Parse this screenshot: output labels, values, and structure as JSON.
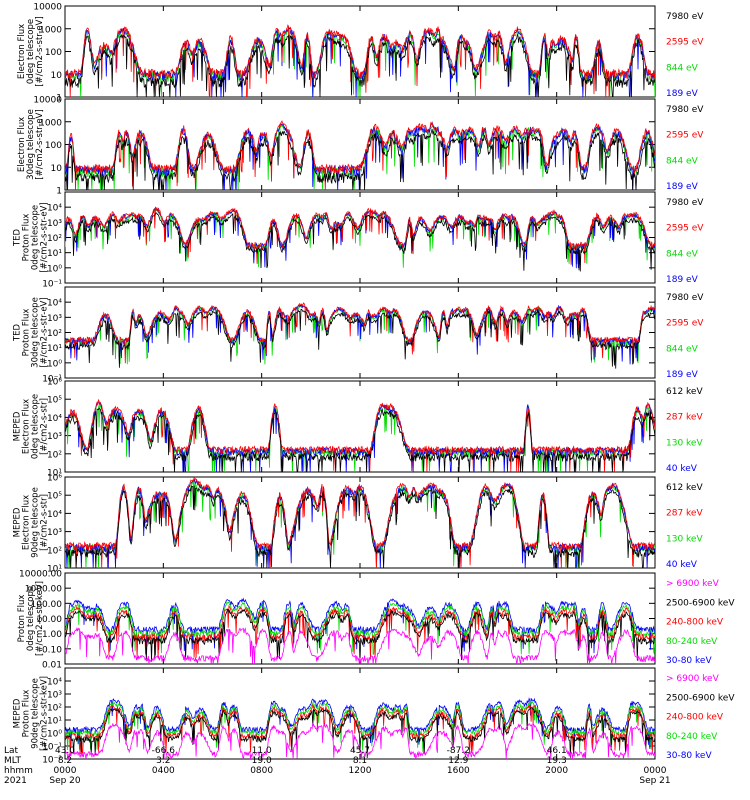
{
  "chart_data": [
    {
      "type": "line",
      "ylabel": [
        "Electron Flux",
        "0deg telescope",
        "[#/cm2-s-str-eV]"
      ],
      "ylog": true,
      "ylim": [
        1,
        10000
      ],
      "yticks": [
        "1",
        "10",
        "100",
        "1000",
        "10000"
      ],
      "legend": [
        {
          "name": "7980 eV",
          "color": "#000000"
        },
        {
          "name": "2595 eV",
          "color": "#ff0000"
        },
        {
          "name": "844 eV",
          "color": "#00dd00"
        },
        {
          "name": "189 eV",
          "color": "#0000ff"
        }
      ],
      "profile": {
        "base": 10,
        "peak": 600,
        "bursts": 42,
        "seed": 11
      },
      "sample_series": {
        "hour": [
          0,
          2,
          4,
          6,
          8,
          10,
          12,
          14,
          16,
          18,
          20,
          22,
          24
        ],
        "values": [
          8,
          200,
          12,
          40,
          150,
          9,
          60,
          300,
          10,
          90,
          20,
          400,
          15
        ]
      }
    },
    {
      "type": "line",
      "ylabel": [
        "Electron Flux",
        "30deg telescope",
        "[#/cm2-s-str-eV]"
      ],
      "ylog": true,
      "ylim": [
        1,
        10000
      ],
      "yticks": [
        "1",
        "10",
        "100",
        "1000",
        "10000"
      ],
      "legend": [
        {
          "name": "7980 eV",
          "color": "#000000"
        },
        {
          "name": "2595 eV",
          "color": "#ff0000"
        },
        {
          "name": "844 eV",
          "color": "#00dd00"
        },
        {
          "name": "189 eV",
          "color": "#0000ff"
        }
      ],
      "profile": {
        "base": 8,
        "peak": 500,
        "bursts": 42,
        "seed": 23
      }
    },
    {
      "type": "line",
      "ylabel": [
        "TED",
        "Proton Flux",
        "0deg telescope",
        "[#/cm2-s-str-eV]"
      ],
      "ylog": true,
      "ylim": [
        0.1,
        100000
      ],
      "yticks": [
        "10⁻¹",
        "10⁰",
        "10¹",
        "10²",
        "10³",
        "10⁴"
      ],
      "legend": [
        {
          "name": "7980 eV",
          "color": "#000000"
        },
        {
          "name": "2595 eV",
          "color": "#ff0000"
        },
        {
          "name": "844 eV",
          "color": "#00dd00"
        },
        {
          "name": "189 eV",
          "color": "#0000ff"
        }
      ],
      "profile": {
        "base": 30,
        "peak": 3000,
        "bursts": 60,
        "seed": 37
      }
    },
    {
      "type": "line",
      "ylabel": [
        "TED",
        "Proton Flux",
        "30deg telescope",
        "[#/cm2-s-str-eV]"
      ],
      "ylog": true,
      "ylim": [
        0.1,
        100000
      ],
      "yticks": [
        "10⁻¹",
        "10⁰",
        "10¹",
        "10²",
        "10³",
        "10⁴"
      ],
      "legend": [
        {
          "name": "7980 eV",
          "color": "#000000"
        },
        {
          "name": "2595 eV",
          "color": "#ff0000"
        },
        {
          "name": "844 eV",
          "color": "#00dd00"
        },
        {
          "name": "189 eV",
          "color": "#0000ff"
        }
      ],
      "profile": {
        "base": 30,
        "peak": 3000,
        "bursts": 60,
        "seed": 41
      }
    },
    {
      "type": "line",
      "ylabel": [
        "MEPED",
        "Electron Flux",
        "0deg telescope",
        "[#/cm2-s-str]"
      ],
      "ylog": true,
      "ylim": [
        10,
        1000000
      ],
      "yticks": [
        "10¹",
        "10²",
        "10³",
        "10⁴",
        "10⁵",
        "10⁶"
      ],
      "legend": [
        {
          "name": "612 keV",
          "color": "#000000"
        },
        {
          "name": "287 keV",
          "color": "#ff0000"
        },
        {
          "name": "130 keV",
          "color": "#00dd00"
        },
        {
          "name": "40 keV",
          "color": "#0000ff"
        }
      ],
      "profile": {
        "base": 150,
        "peak": 50000,
        "bursts": 14,
        "seed": 53
      }
    },
    {
      "type": "line",
      "ylabel": [
        "MEPED",
        "Electron Flux",
        "90deg telescope",
        "[#/cm2-s-str]"
      ],
      "ylog": true,
      "ylim": [
        10,
        1000000
      ],
      "yticks": [
        "10¹",
        "10²",
        "10³",
        "10⁴",
        "10⁵",
        "10⁶"
      ],
      "legend": [
        {
          "name": "612 keV",
          "color": "#000000"
        },
        {
          "name": "287 keV",
          "color": "#ff0000"
        },
        {
          "name": "130 keV",
          "color": "#00dd00"
        },
        {
          "name": "40 keV",
          "color": "#0000ff"
        }
      ],
      "profile": {
        "base": 150,
        "peak": 300000,
        "bursts": 34,
        "seed": 67
      }
    },
    {
      "type": "line",
      "ylabel": [
        "Proton Flux",
        "0deg telescope",
        "[#/cm2-s-str-keV]"
      ],
      "ylog": true,
      "ylim": [
        0.01,
        10000
      ],
      "yticks": [
        "0.01",
        "0.10",
        "1.00",
        "10.00",
        "100.00",
        "1000.00",
        "10000.00"
      ],
      "legend": [
        {
          "name": "> 6900 keV",
          "color": "#ff00ff"
        },
        {
          "name": "2500-6900 keV",
          "color": "#000000"
        },
        {
          "name": "240-800 keV",
          "color": "#ff0000"
        },
        {
          "name": "80-240 keV",
          "color": "#00dd00"
        },
        {
          "name": "30-80 keV",
          "color": "#0000ff"
        }
      ],
      "profile": {
        "base": 1.3,
        "peak": 80,
        "bursts": 40,
        "seed": 79
      }
    },
    {
      "type": "line",
      "ylabel": [
        "MEPED",
        "Proton Flux",
        "90deg telescope",
        "[#/cm2-s-str-keV]"
      ],
      "ylog": true,
      "ylim": [
        0.01,
        100000
      ],
      "yticks": [
        "10⁻²",
        "10⁻¹",
        "10⁰",
        "10¹",
        "10²",
        "10³",
        "10⁴"
      ],
      "legend": [
        {
          "name": "> 6900 keV",
          "color": "#ff00ff"
        },
        {
          "name": "2500-6900 keV",
          "color": "#000000"
        },
        {
          "name": "240-800 keV",
          "color": "#ff0000"
        },
        {
          "name": "80-240 keV",
          "color": "#00dd00"
        },
        {
          "name": "30-80 keV",
          "color": "#0000ff"
        }
      ],
      "profile": {
        "base": 1.3,
        "peak": 150,
        "bursts": 40,
        "seed": 83
      }
    }
  ],
  "xaxis": {
    "row_labels": [
      "Lat",
      "MLT",
      "hhmm",
      "2021"
    ],
    "ticks": [
      {
        "hour": 0,
        "lat": "43.0",
        "mlt": "8.2",
        "hhmm": "0000",
        "date": "Sep 20"
      },
      {
        "hour": 4,
        "lat": "-66.6",
        "mlt": "3.2",
        "hhmm": "0400",
        "date": ""
      },
      {
        "hour": 8,
        "lat": "11.0",
        "mlt": "19.0",
        "hhmm": "0800",
        "date": ""
      },
      {
        "hour": 12,
        "lat": "45.7",
        "mlt": "8.1",
        "hhmm": "1200",
        "date": ""
      },
      {
        "hour": 16,
        "lat": "-87.2",
        "mlt": "12.9",
        "hhmm": "1600",
        "date": ""
      },
      {
        "hour": 20,
        "lat": "46.1",
        "mlt": "19.3",
        "hhmm": "2000",
        "date": ""
      },
      {
        "hour": 24,
        "lat": "",
        "mlt": "",
        "hhmm": "0000",
        "date": "Sep 21"
      }
    ],
    "xlim": [
      0,
      24
    ]
  }
}
